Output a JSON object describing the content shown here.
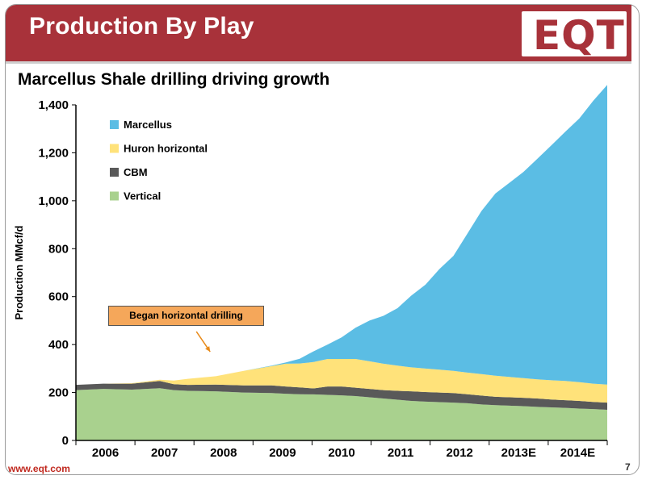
{
  "header": {
    "title": "Production By Play",
    "logo_text": "EQT",
    "brand_color": "#a8323a"
  },
  "footer": {
    "url": "www.eqt.com",
    "page_number": "7"
  },
  "annotation": {
    "text": "Began horizontal drilling",
    "x": 2007.9,
    "y": 370
  },
  "chart_data": {
    "type": "area",
    "stacked": true,
    "title": "Marcellus Shale drilling driving growth",
    "ylabel": "Production MMcf/d",
    "xlabel": "",
    "ylim": [
      0,
      1400
    ],
    "xlim": [
      2005.5,
      2015
    ],
    "yticks": [
      0,
      200,
      400,
      600,
      800,
      1000,
      1200,
      1400
    ],
    "ytick_labels": [
      "0",
      "200",
      "400",
      "600",
      "800",
      "1,000",
      "1,200",
      "1,400"
    ],
    "categories": [
      "2006",
      "2007",
      "2008",
      "2009",
      "2010",
      "2011",
      "2012",
      "2013E",
      "2014E"
    ],
    "legend_position": "top-left",
    "grid": false,
    "x": [
      2005.5,
      2006.0,
      2006.5,
      2007.0,
      2007.25,
      2007.5,
      2008.0,
      2008.5,
      2009.0,
      2009.25,
      2009.5,
      2009.75,
      2010.0,
      2010.25,
      2010.5,
      2010.75,
      2011.0,
      2011.25,
      2011.5,
      2011.75,
      2012.0,
      2012.25,
      2012.5,
      2012.75,
      2013.0,
      2013.25,
      2013.5,
      2013.75,
      2014.0,
      2014.25,
      2014.5,
      2014.75,
      2015.0
    ],
    "series": [
      {
        "name": "Vertical",
        "color": "#a9d18e",
        "values": [
          210,
          215,
          212,
          218,
          210,
          207,
          205,
          200,
          198,
          195,
          193,
          192,
          190,
          188,
          185,
          180,
          175,
          170,
          165,
          162,
          160,
          158,
          155,
          150,
          147,
          145,
          143,
          140,
          138,
          136,
          133,
          131,
          128
        ]
      },
      {
        "name": "CBM",
        "color": "#595959",
        "values": [
          22,
          22,
          25,
          30,
          25,
          25,
          28,
          30,
          32,
          30,
          28,
          25,
          35,
          37,
          35,
          35,
          35,
          37,
          40,
          40,
          40,
          40,
          38,
          37,
          35,
          35,
          35,
          35,
          33,
          32,
          32,
          30,
          30
        ]
      },
      {
        "name": "Huron horizontal",
        "color": "#ffe27a",
        "values": [
          0,
          0,
          2,
          5,
          15,
          25,
          35,
          60,
          80,
          95,
          100,
          110,
          115,
          115,
          120,
          115,
          110,
          105,
          100,
          98,
          95,
          92,
          90,
          90,
          88,
          85,
          82,
          80,
          80,
          80,
          78,
          76,
          75
        ]
      },
      {
        "name": "Marcellus",
        "color": "#5bbde4",
        "values": [
          0,
          0,
          0,
          0,
          0,
          0,
          0,
          0,
          2,
          5,
          20,
          45,
          60,
          90,
          130,
          170,
          200,
          240,
          300,
          350,
          420,
          480,
          580,
          680,
          760,
          810,
          860,
          920,
          980,
          1040,
          1100,
          1180,
          1250
        ]
      }
    ]
  }
}
